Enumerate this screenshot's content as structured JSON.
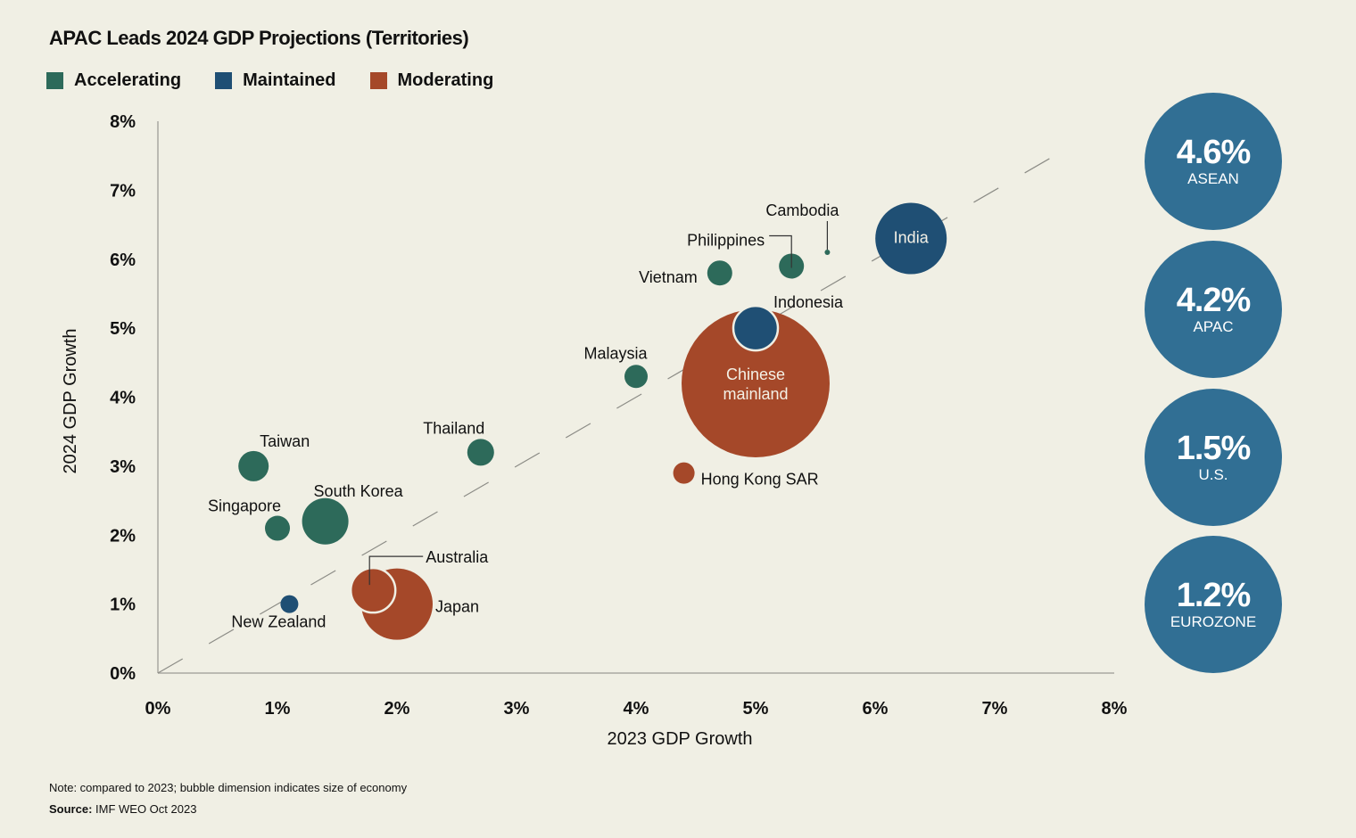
{
  "title": "APAC Leads 2024 GDP Projections (Territories)",
  "legend": [
    {
      "label": "Accelerating",
      "color": "#2d6a5a"
    },
    {
      "label": "Maintained",
      "color": "#1f4f74"
    },
    {
      "label": "Moderating",
      "color": "#a54829"
    }
  ],
  "stats": [
    {
      "value": "4.6%",
      "label": "ASEAN"
    },
    {
      "value": "4.2%",
      "label": "APAC"
    },
    {
      "value": "1.5%",
      "label": "U.S."
    },
    {
      "value": "1.2%",
      "label": "EUROZONE"
    }
  ],
  "footer": {
    "note": "Note: compared to 2023; bubble dimension indicates size of economy",
    "source_label": "Source:",
    "source_text": " IMF WEO Oct 2023"
  },
  "chart_data": {
    "type": "scatter",
    "subtype": "bubble",
    "title": "APAC Leads 2024 GDP Projections (Territories)",
    "xlabel": "2023 GDP Growth",
    "ylabel": "2024 GDP Growth",
    "xlim": [
      0,
      8
    ],
    "ylim": [
      0,
      8
    ],
    "x_ticks": [
      "0%",
      "1%",
      "2%",
      "3%",
      "4%",
      "5%",
      "6%",
      "7%",
      "8%"
    ],
    "y_ticks": [
      "0%",
      "1%",
      "2%",
      "3%",
      "4%",
      "5%",
      "6%",
      "7%",
      "8%"
    ],
    "grid": false,
    "reference_line": {
      "type": "dashed",
      "equation": "y = x",
      "range": [
        0,
        7.64
      ]
    },
    "legend_position": "top-left",
    "categories": [
      "Accelerating",
      "Maintained",
      "Moderating"
    ],
    "points": [
      {
        "name": "India",
        "x": 6.3,
        "y": 6.3,
        "size": 40,
        "category": "Maintained"
      },
      {
        "name": "Cambodia",
        "x": 5.6,
        "y": 6.1,
        "size": 3,
        "category": "Accelerating"
      },
      {
        "name": "Philippines",
        "x": 5.3,
        "y": 5.9,
        "size": 14,
        "category": "Accelerating"
      },
      {
        "name": "Vietnam",
        "x": 4.7,
        "y": 5.8,
        "size": 14,
        "category": "Accelerating"
      },
      {
        "name": "Chinese mainland",
        "x": 5.0,
        "y": 4.2,
        "size": 83,
        "category": "Moderating"
      },
      {
        "name": "Indonesia",
        "x": 5.0,
        "y": 5.0,
        "size": 25,
        "category": "Maintained"
      },
      {
        "name": "Malaysia",
        "x": 4.0,
        "y": 4.3,
        "size": 13,
        "category": "Accelerating"
      },
      {
        "name": "Hong Kong SAR",
        "x": 4.4,
        "y": 2.9,
        "size": 12,
        "category": "Moderating"
      },
      {
        "name": "Thailand",
        "x": 2.7,
        "y": 3.2,
        "size": 15,
        "category": "Accelerating"
      },
      {
        "name": "Taiwan",
        "x": 0.8,
        "y": 3.0,
        "size": 17,
        "category": "Accelerating"
      },
      {
        "name": "South Korea",
        "x": 1.4,
        "y": 2.2,
        "size": 26,
        "category": "Accelerating"
      },
      {
        "name": "Singapore",
        "x": 1.0,
        "y": 2.1,
        "size": 14,
        "category": "Accelerating"
      },
      {
        "name": "New Zealand",
        "x": 1.1,
        "y": 1.0,
        "size": 10,
        "category": "Maintained"
      },
      {
        "name": "Japan",
        "x": 2.0,
        "y": 1.0,
        "size": 40,
        "category": "Moderating"
      },
      {
        "name": "Australia",
        "x": 1.8,
        "y": 1.2,
        "size": 25,
        "category": "Moderating"
      }
    ]
  }
}
